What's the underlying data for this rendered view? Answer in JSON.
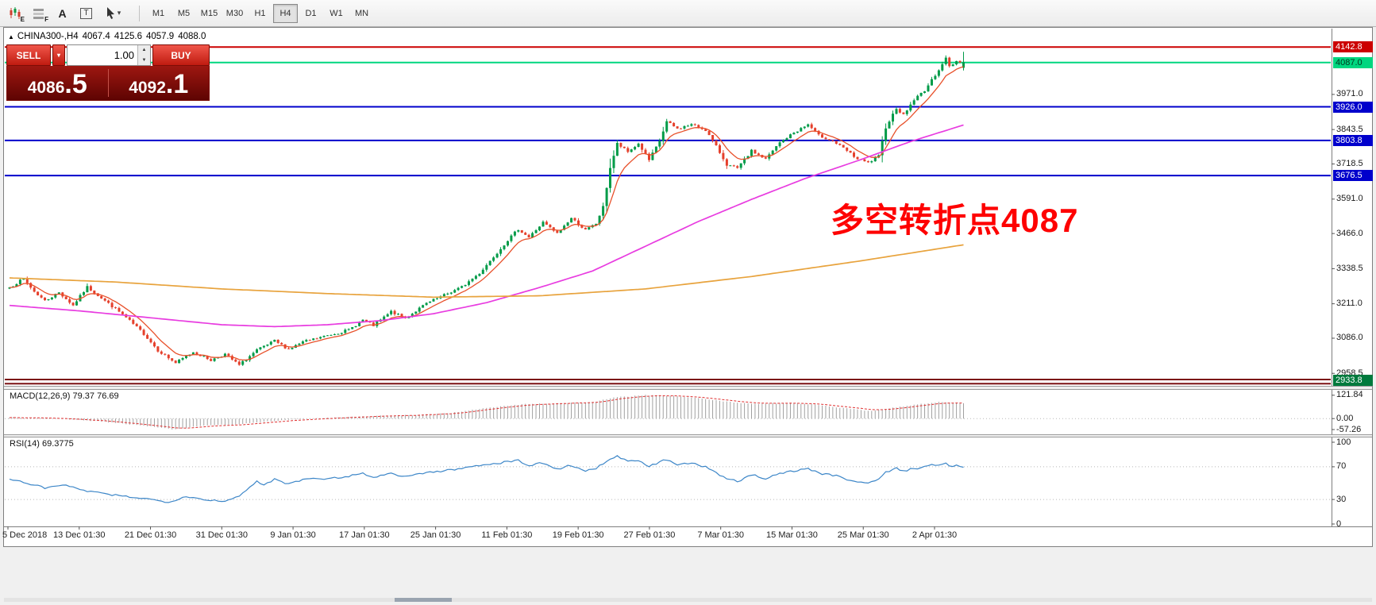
{
  "toolbar": {
    "icons": [
      {
        "name": "candlestick-tool",
        "badge": "E"
      },
      {
        "name": "grid-tool",
        "badge": "F"
      },
      {
        "name": "text-tool",
        "label": "A"
      },
      {
        "name": "textbox-tool",
        "label": "T"
      },
      {
        "name": "cursor-tool",
        "caret": "▾"
      }
    ],
    "timeframes": [
      "M1",
      "M5",
      "M15",
      "M30",
      "H1",
      "H4",
      "D1",
      "W1",
      "MN"
    ],
    "active_timeframe": "H4"
  },
  "chart": {
    "symbol_period": "CHINA300-,H4",
    "ohlc": {
      "open": "4067.4",
      "high": "4125.6",
      "low": "4057.9",
      "close": "4088.0"
    },
    "annotation": "多空转折点4087"
  },
  "trade_panel": {
    "sell_label": "SELL",
    "buy_label": "BUY",
    "volume": "1.00",
    "sell_price": {
      "base": "4086",
      "big": ".5"
    },
    "buy_price": {
      "base": "4092",
      "big": ".1"
    }
  },
  "chart_data": {
    "type": "candlestick",
    "symbol": "CHINA300-",
    "period": "H4",
    "bars": 271,
    "price_axis": {
      "min": 2913,
      "max": 4210,
      "ticks": [
        "3971.0",
        "3843.5",
        "3718.5",
        "3591.0",
        "3466.0",
        "3338.5",
        "3211.0",
        "3086.0",
        "2958.5"
      ],
      "tick_values": [
        3971.0,
        3843.5,
        3718.5,
        3591.0,
        3466.0,
        3338.5,
        3211.0,
        3086.0,
        2958.5
      ]
    },
    "colors": {
      "up": "#009b48",
      "down": "#e5402c",
      "ma_fast": "#e8502a",
      "ma_mid": "#e83ce0",
      "ma_slow": "#e8a33d",
      "rsi": "#3c86c8",
      "macd_hist": "#a0a0a0",
      "macd_signal": "#e03030"
    },
    "close_anchors": [
      [
        0,
        3270
      ],
      [
        4,
        3302
      ],
      [
        7,
        3255
      ],
      [
        10,
        3222
      ],
      [
        14,
        3252
      ],
      [
        18,
        3205
      ],
      [
        22,
        3272
      ],
      [
        26,
        3232
      ],
      [
        32,
        3172
      ],
      [
        38,
        3102
      ],
      [
        42,
        3042
      ],
      [
        47,
        2996
      ],
      [
        52,
        3036
      ],
      [
        57,
        3006
      ],
      [
        61,
        3028
      ],
      [
        65,
        2988
      ],
      [
        70,
        3042
      ],
      [
        75,
        3076
      ],
      [
        79,
        3046
      ],
      [
        83,
        3072
      ],
      [
        90,
        3096
      ],
      [
        96,
        3116
      ],
      [
        100,
        3152
      ],
      [
        103,
        3132
      ],
      [
        108,
        3182
      ],
      [
        112,
        3158
      ],
      [
        118,
        3212
      ],
      [
        123,
        3242
      ],
      [
        128,
        3272
      ],
      [
        133,
        3322
      ],
      [
        137,
        3382
      ],
      [
        141,
        3442
      ],
      [
        144,
        3482
      ],
      [
        147,
        3452
      ],
      [
        151,
        3506
      ],
      [
        155,
        3466
      ],
      [
        159,
        3522
      ],
      [
        163,
        3478
      ],
      [
        166,
        3502
      ],
      [
        168,
        3562
      ],
      [
        170,
        3705
      ],
      [
        172,
        3792
      ],
      [
        175,
        3762
      ],
      [
        178,
        3792
      ],
      [
        181,
        3732
      ],
      [
        184,
        3802
      ],
      [
        186,
        3872
      ],
      [
        189,
        3846
      ],
      [
        193,
        3862
      ],
      [
        197,
        3842
      ],
      [
        200,
        3782
      ],
      [
        203,
        3716
      ],
      [
        206,
        3702
      ],
      [
        210,
        3766
      ],
      [
        214,
        3736
      ],
      [
        218,
        3796
      ],
      [
        222,
        3832
      ],
      [
        226,
        3862
      ],
      [
        229,
        3822
      ],
      [
        233,
        3802
      ],
      [
        237,
        3766
      ],
      [
        240,
        3736
      ],
      [
        243,
        3722
      ],
      [
        246,
        3746
      ],
      [
        248,
        3852
      ],
      [
        251,
        3922
      ],
      [
        253,
        3896
      ],
      [
        256,
        3952
      ],
      [
        259,
        3986
      ],
      [
        261,
        4022
      ],
      [
        263,
        4062
      ],
      [
        265,
        4102
      ],
      [
        266,
        4072
      ],
      [
        268,
        4092
      ],
      [
        270,
        4088
      ]
    ],
    "last_bar": {
      "open": 4067.4,
      "high": 4125.6,
      "low": 4057.9,
      "close": 4088.0
    },
    "ma_mid_anchors": [
      [
        0,
        3205
      ],
      [
        20,
        3185
      ],
      [
        40,
        3160
      ],
      [
        60,
        3135
      ],
      [
        75,
        3128
      ],
      [
        90,
        3135
      ],
      [
        105,
        3150
      ],
      [
        120,
        3175
      ],
      [
        135,
        3215
      ],
      [
        150,
        3270
      ],
      [
        165,
        3330
      ],
      [
        180,
        3420
      ],
      [
        195,
        3510
      ],
      [
        210,
        3590
      ],
      [
        225,
        3665
      ],
      [
        240,
        3730
      ],
      [
        255,
        3800
      ],
      [
        270,
        3860
      ]
    ],
    "ma_slow_anchors": [
      [
        0,
        3305
      ],
      [
        30,
        3290
      ],
      [
        60,
        3265
      ],
      [
        90,
        3248
      ],
      [
        120,
        3235
      ],
      [
        150,
        3240
      ],
      [
        180,
        3265
      ],
      [
        210,
        3310
      ],
      [
        240,
        3365
      ],
      [
        270,
        3425
      ]
    ],
    "hlines": [
      {
        "price": 4142.8,
        "color": "#cc0000",
        "width": 2
      },
      {
        "price": 4087.0,
        "color": "#00d67f",
        "width": 2
      },
      {
        "price": 3926.0,
        "color": "#0000cc",
        "width": 2
      },
      {
        "price": 3803.8,
        "color": "#0000cc",
        "width": 2
      },
      {
        "price": 3676.5,
        "color": "#0000cc",
        "width": 2
      },
      {
        "price": 2936.0,
        "color": "#7b1113",
        "width": 2
      },
      {
        "price": 2921.0,
        "color": "#7b1113",
        "width": 2
      }
    ],
    "badges": [
      {
        "text": "4142.8",
        "price": 4142.8,
        "bg": "#cc0000",
        "fg": "#ffffff"
      },
      {
        "text": "4087.0",
        "price": 4087.0,
        "bg": "#00d67f",
        "fg": "#003820"
      },
      {
        "text": "3926.0",
        "price": 3926.0,
        "bg": "#0000cc",
        "fg": "#ffffff"
      },
      {
        "text": "3803.8",
        "price": 3803.8,
        "bg": "#0000cc",
        "fg": "#ffffff"
      },
      {
        "text": "3676.5",
        "price": 3676.5,
        "bg": "#0000cc",
        "fg": "#ffffff"
      },
      {
        "text": "2933.8",
        "price": 2933.8,
        "bg": "#007a3d",
        "fg": "#ffffff"
      }
    ],
    "macd": {
      "label": "MACD(12,26,9)",
      "v1": "79.37",
      "v2": "76.69",
      "axis_labels": [
        "121.84",
        "0.00",
        "-57.26"
      ],
      "axis_values": [
        121.84,
        0,
        -57.26
      ],
      "main_anchors": [
        [
          0,
          5
        ],
        [
          10,
          2
        ],
        [
          20,
          -6
        ],
        [
          30,
          -22
        ],
        [
          40,
          -42
        ],
        [
          47,
          -57.3
        ],
        [
          55,
          -36
        ],
        [
          65,
          -30
        ],
        [
          75,
          -12
        ],
        [
          85,
          0
        ],
        [
          95,
          8
        ],
        [
          105,
          15
        ],
        [
          115,
          18
        ],
        [
          125,
          30
        ],
        [
          135,
          55
        ],
        [
          145,
          75
        ],
        [
          155,
          80
        ],
        [
          165,
          86
        ],
        [
          172,
          112
        ],
        [
          180,
          121.8
        ],
        [
          188,
          118
        ],
        [
          196,
          104
        ],
        [
          204,
          86
        ],
        [
          212,
          76
        ],
        [
          220,
          82
        ],
        [
          228,
          74
        ],
        [
          236,
          55
        ],
        [
          243,
          40
        ],
        [
          250,
          56
        ],
        [
          257,
          74
        ],
        [
          263,
          86
        ],
        [
          270,
          79.4
        ]
      ]
    },
    "rsi": {
      "label": "RSI(14)",
      "value_text": "69.3775",
      "levels": [
        70,
        30
      ],
      "axis_labels": [
        "100",
        "70",
        "30",
        "0"
      ],
      "axis_values": [
        100,
        70,
        30,
        0
      ],
      "anchors": [
        [
          0,
          55
        ],
        [
          5,
          50
        ],
        [
          10,
          44
        ],
        [
          15,
          48
        ],
        [
          20,
          42
        ],
        [
          25,
          38
        ],
        [
          30,
          35
        ],
        [
          35,
          33
        ],
        [
          40,
          30
        ],
        [
          45,
          27
        ],
        [
          50,
          34
        ],
        [
          55,
          30
        ],
        [
          60,
          28
        ],
        [
          65,
          33
        ],
        [
          68,
          45
        ],
        [
          70,
          52
        ],
        [
          72,
          48
        ],
        [
          75,
          55
        ],
        [
          78,
          50
        ],
        [
          82,
          53
        ],
        [
          86,
          57
        ],
        [
          90,
          55
        ],
        [
          95,
          58
        ],
        [
          100,
          62
        ],
        [
          103,
          57
        ],
        [
          108,
          62
        ],
        [
          112,
          58
        ],
        [
          118,
          63
        ],
        [
          123,
          65
        ],
        [
          128,
          68
        ],
        [
          133,
          72
        ],
        [
          137,
          74
        ],
        [
          141,
          76
        ],
        [
          144,
          78
        ],
        [
          147,
          71
        ],
        [
          151,
          75
        ],
        [
          155,
          67
        ],
        [
          159,
          72
        ],
        [
          163,
          65
        ],
        [
          166,
          68
        ],
        [
          170,
          80
        ],
        [
          172,
          83
        ],
        [
          175,
          76
        ],
        [
          178,
          78
        ],
        [
          181,
          70
        ],
        [
          184,
          76
        ],
        [
          186,
          79
        ],
        [
          189,
          73
        ],
        [
          193,
          74
        ],
        [
          197,
          70
        ],
        [
          200,
          62
        ],
        [
          203,
          55
        ],
        [
          206,
          52
        ],
        [
          210,
          60
        ],
        [
          214,
          56
        ],
        [
          218,
          62
        ],
        [
          222,
          65
        ],
        [
          226,
          68
        ],
        [
          229,
          62
        ],
        [
          233,
          60
        ],
        [
          237,
          55
        ],
        [
          240,
          52
        ],
        [
          243,
          50
        ],
        [
          246,
          55
        ],
        [
          248,
          63
        ],
        [
          251,
          68
        ],
        [
          253,
          65
        ],
        [
          256,
          68
        ],
        [
          259,
          70
        ],
        [
          261,
          72
        ],
        [
          263,
          73
        ],
        [
          265,
          74
        ],
        [
          266,
          70
        ],
        [
          268,
          71
        ],
        [
          270,
          69.38
        ]
      ]
    },
    "dates": [
      "5 Dec 2018",
      "13 Dec 01:30",
      "21 Dec 01:30",
      "31 Dec 01:30",
      "9 Jan 01:30",
      "17 Jan 01:30",
      "25 Jan 01:30",
      "11 Feb 01:30",
      "19 Feb 01:30",
      "27 Feb 01:30",
      "7 Mar 01:30",
      "15 Mar 01:30",
      "25 Mar 01:30",
      "2 Apr 01:30"
    ]
  }
}
